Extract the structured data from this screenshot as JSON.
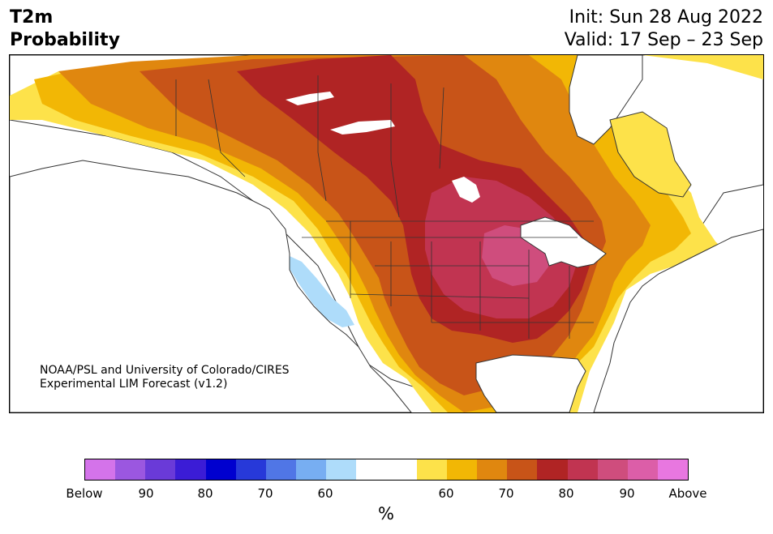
{
  "header": {
    "title_line1": "T2m",
    "title_line2": "Probability",
    "init": "Init: Sun 28 Aug 2022",
    "valid": "Valid: 17 Sep – 23 Sep"
  },
  "credit": {
    "line1": "NOAA/PSL and University of Colorado/CIRES",
    "line2": "Experimental LIM Forecast (v1.2)"
  },
  "colorbar": {
    "unit": "%",
    "colors": [
      "#d473ea",
      "#9b57e0",
      "#6a3ad8",
      "#3b1cd6",
      "#0000cf",
      "#2739d9",
      "#5076e6",
      "#77aef2",
      "#aedcfa",
      "#ffffff",
      "#ffffff",
      "#fde24a",
      "#f2b705",
      "#e0870f",
      "#c85418",
      "#b02424",
      "#c13451",
      "#cf4d7d",
      "#dc5ea8",
      "#e877e0"
    ],
    "ticks": [
      "Below",
      "90",
      "80",
      "70",
      "60",
      "60",
      "70",
      "80",
      "90",
      "Above"
    ]
  },
  "map": {
    "colors": {
      "ocean": "#ffffff",
      "land": "#ffffff",
      "below_60": "#aedcfa",
      "above_60": "#fde24a",
      "above_65": "#f2b705",
      "above_70": "#e0870f",
      "above_75": "#c85418",
      "above_80": "#b02424",
      "above_85": "#c13451",
      "above_90": "#cf4d7d",
      "outline": "#333333"
    }
  }
}
